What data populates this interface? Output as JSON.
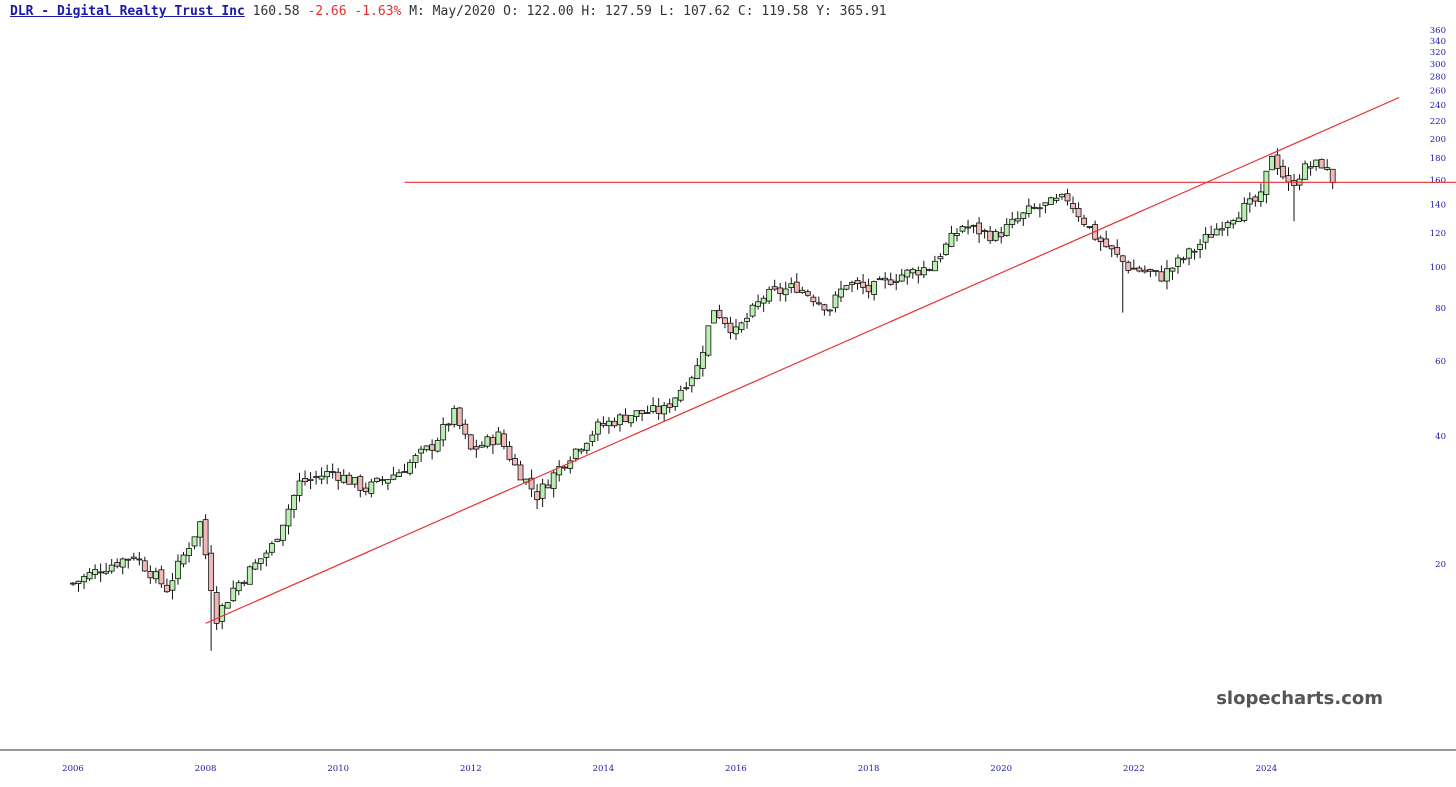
{
  "header": {
    "symbol_link": "DLR - Digital Realty Trust Inc",
    "price": "160.58",
    "change": "-2.66",
    "change_pct": "-1.63%",
    "ohlc": "M: May/2020 O: 122.00 H: 127.59 L: 107.62 C: 119.58 Y: 365.91"
  },
  "colors": {
    "up": "#b8f0b0",
    "down": "#f0b8b8",
    "trendline": "#e83030",
    "axis_text": "#1a1aa8"
  },
  "watermark": "slopecharts.com",
  "chart_data": {
    "type": "candlestick",
    "scale": "log",
    "ylim": [
      12,
      365
    ],
    "yticks": [
      20,
      40,
      60,
      80,
      100,
      120,
      140,
      160,
      180,
      200,
      220,
      240,
      260,
      280,
      300,
      320,
      340,
      360
    ],
    "xticks": [
      "2006",
      "2008",
      "2010",
      "2012",
      "2014",
      "2016",
      "2018",
      "2020",
      "2022",
      "2024"
    ],
    "x_range": [
      "2006-01",
      "2026-02"
    ],
    "support_line": {
      "start": "2011-01",
      "value": 158
    },
    "trend_line": {
      "start": "2008-01",
      "start_value": 14.5,
      "end": "2026-01",
      "end_value": 250
    },
    "anchors": [
      [
        "2006-01",
        18
      ],
      [
        "2006-06",
        19.5
      ],
      [
        "2006-12",
        21
      ],
      [
        "2007-06",
        17.5
      ],
      [
        "2007-12",
        25
      ],
      [
        "2008-03",
        15
      ],
      [
        "2008-06",
        17.5
      ],
      [
        "2009-01",
        22
      ],
      [
        "2009-06",
        31
      ],
      [
        "2009-12",
        33
      ],
      [
        "2010-06",
        30
      ],
      [
        "2010-12",
        33
      ],
      [
        "2011-06",
        38
      ],
      [
        "2011-10",
        45
      ],
      [
        "2012-01",
        37
      ],
      [
        "2012-06",
        40
      ],
      [
        "2012-09",
        34
      ],
      [
        "2013-01",
        29
      ],
      [
        "2013-06",
        35
      ],
      [
        "2013-12",
        42
      ],
      [
        "2014-06",
        45
      ],
      [
        "2014-12",
        46
      ],
      [
        "2015-06",
        58
      ],
      [
        "2015-09",
        80
      ],
      [
        "2016-01",
        70
      ],
      [
        "2016-06",
        85
      ],
      [
        "2016-12",
        90
      ],
      [
        "2017-06",
        80
      ],
      [
        "2017-09",
        92
      ],
      [
        "2018-01",
        88
      ],
      [
        "2018-06",
        95
      ],
      [
        "2018-12",
        100
      ],
      [
        "2019-06",
        125
      ],
      [
        "2019-12",
        118
      ],
      [
        "2020-06",
        135
      ],
      [
        "2021-01",
        145
      ],
      [
        "2021-06",
        118
      ],
      [
        "2021-12",
        100
      ],
      [
        "2022-06",
        95
      ],
      [
        "2022-12",
        110
      ],
      [
        "2023-06",
        130
      ],
      [
        "2023-12",
        145
      ],
      [
        "2024-02",
        185
      ],
      [
        "2024-05",
        155
      ],
      [
        "2024-08",
        170
      ],
      [
        "2024-11",
        175
      ],
      [
        "2025-01",
        160
      ]
    ],
    "extremes": [
      [
        "2008-02",
        "low",
        12.5
      ],
      [
        "2021-11",
        "low",
        78
      ],
      [
        "2024-03",
        "high",
        190
      ],
      [
        "2024-06",
        "low",
        128
      ]
    ]
  }
}
